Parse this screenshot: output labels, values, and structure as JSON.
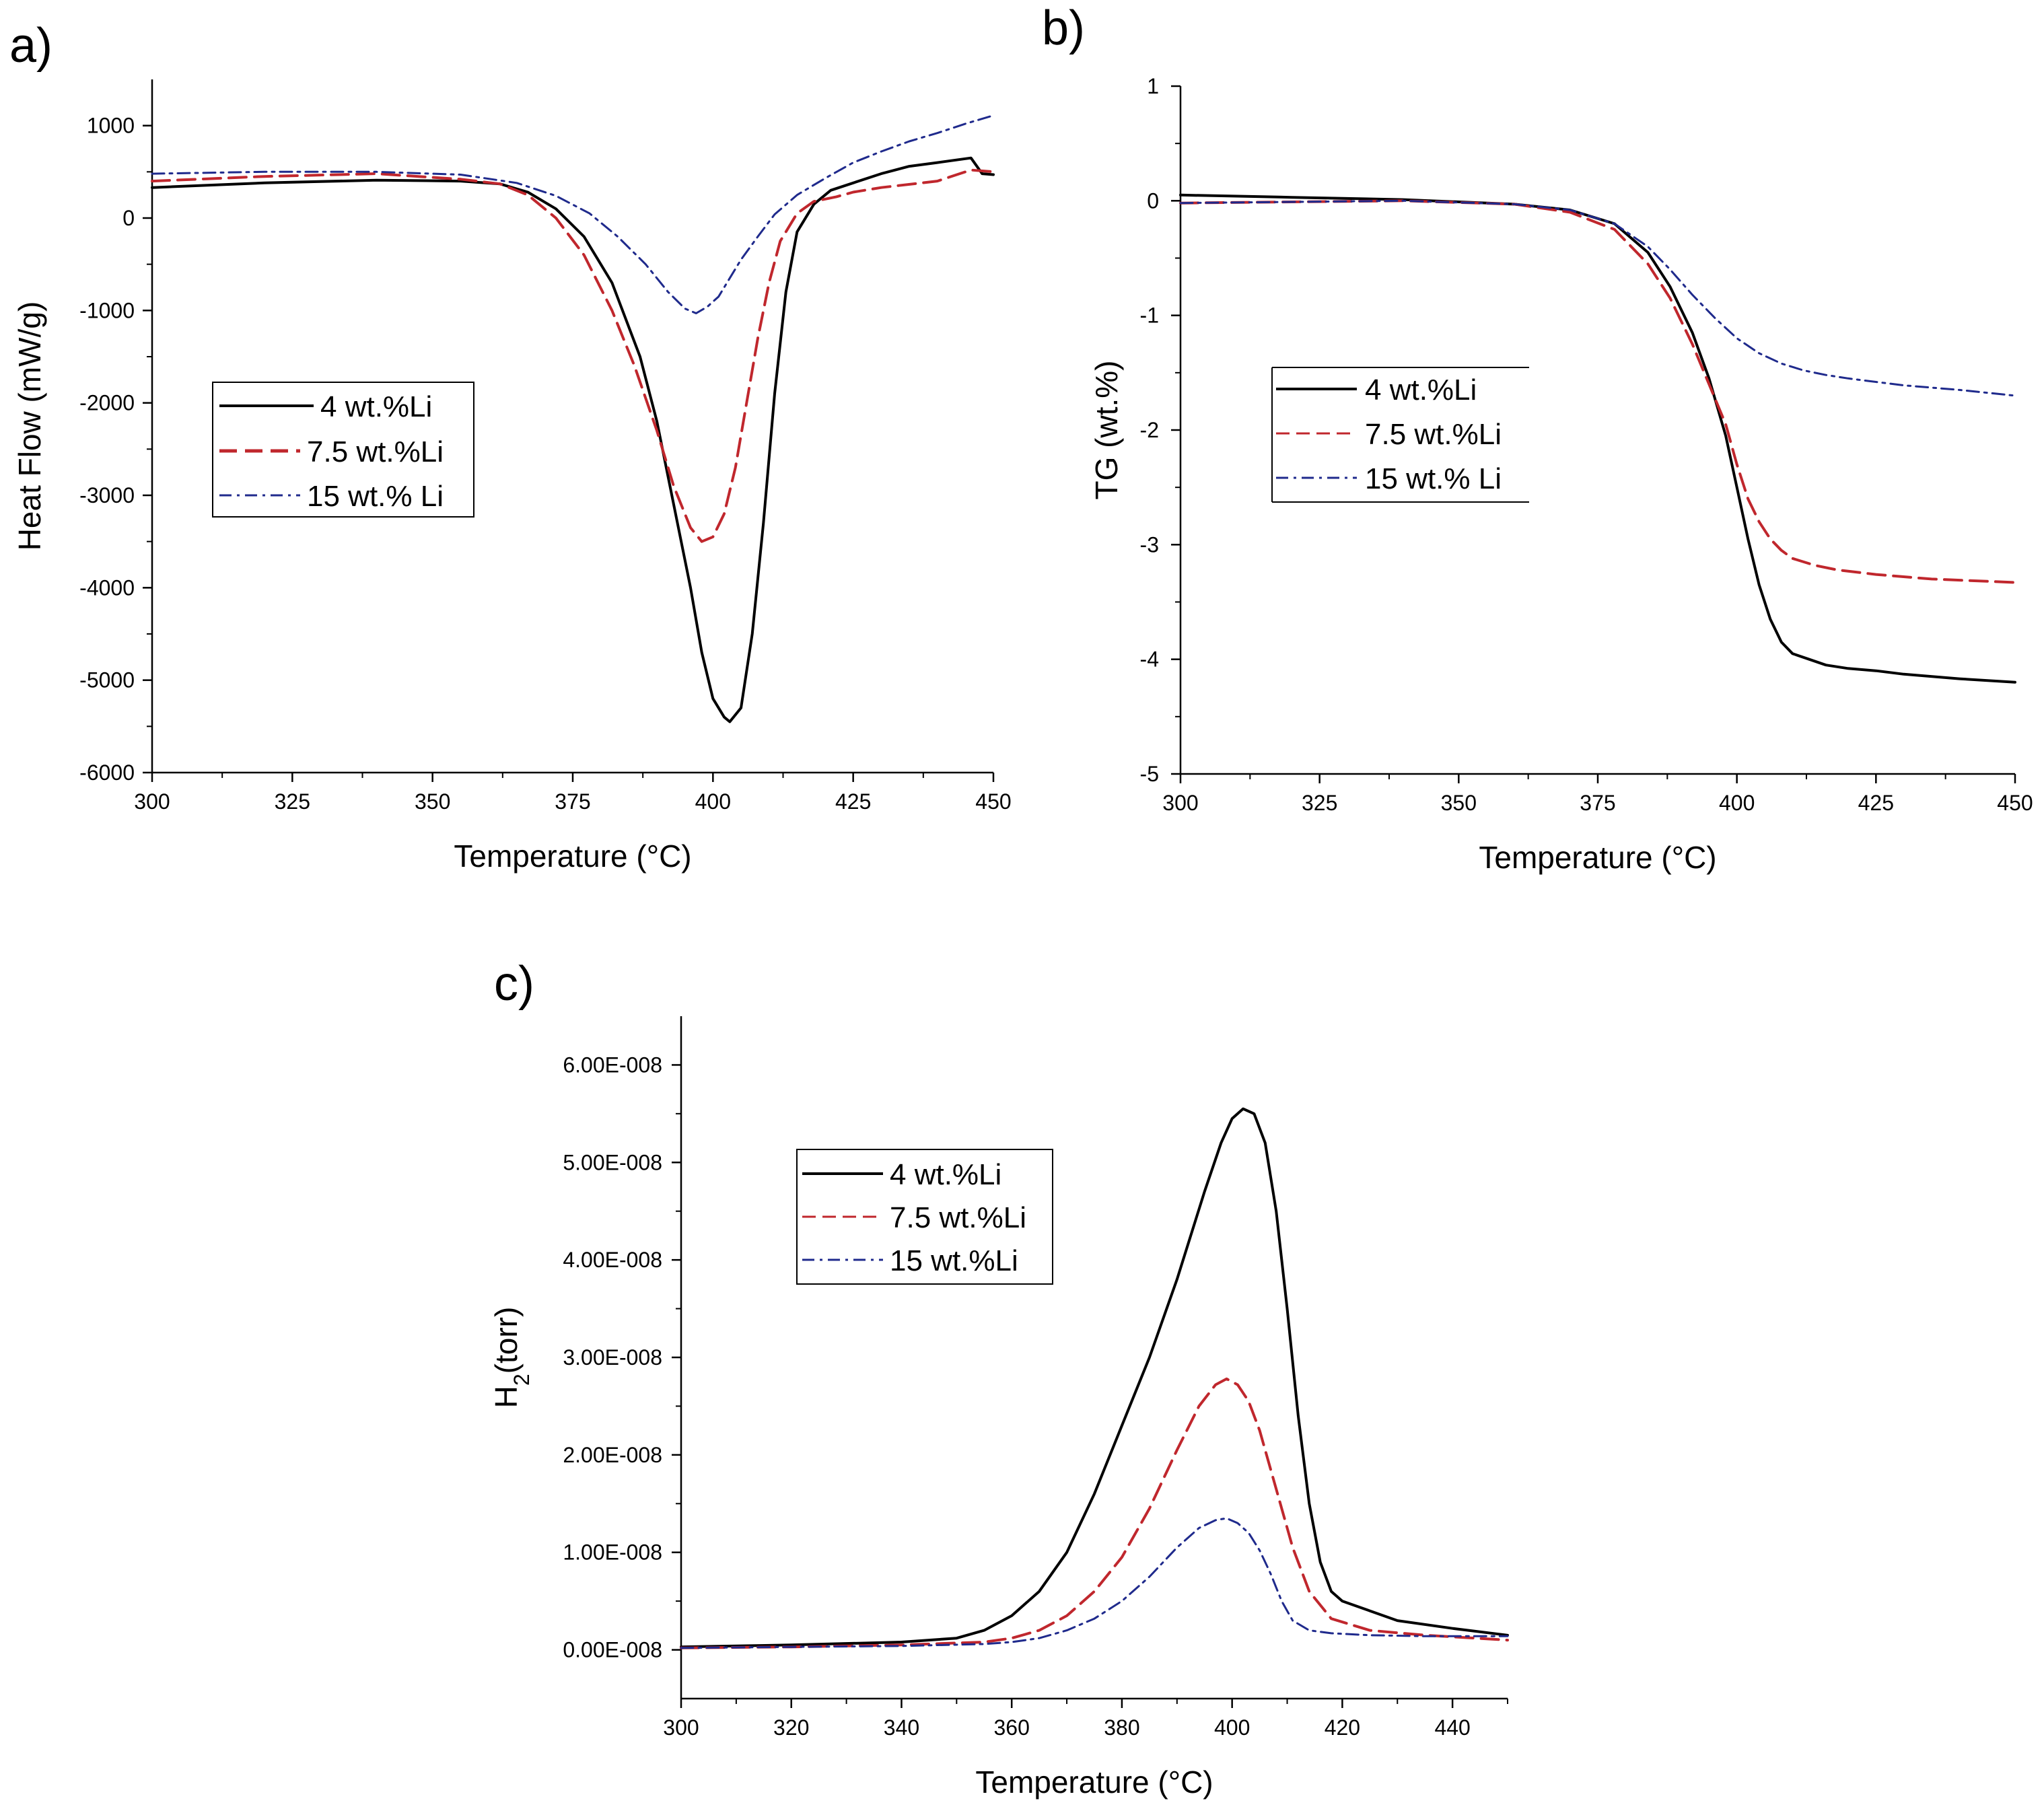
{
  "figure": {
    "panels": [
      "a)",
      "b)",
      "c)"
    ]
  },
  "chart_data": [
    {
      "type": "line",
      "panel": "a)",
      "xlabel": "Temperature (°C)",
      "ylabel": "Heat Flow (mW/g)",
      "xlim": [
        300,
        450
      ],
      "ylim": [
        -6000,
        1500
      ],
      "xticks": [
        300,
        325,
        350,
        375,
        400,
        425,
        450
      ],
      "yticks": [
        1000,
        0,
        -1000,
        -2000,
        -3000,
        -4000,
        -5000,
        -6000
      ],
      "xtick_labels": [
        "300",
        "325",
        "350",
        "375",
        "400",
        "425",
        "450"
      ],
      "ytick_labels": [
        "1000",
        "0",
        "-1000",
        "-2000",
        "-3000",
        "-4000",
        "-5000",
        "-6000"
      ],
      "legend": {
        "position": "left-middle",
        "entries": [
          "4 wt.%Li",
          "7.5 wt.%Li",
          "15 wt.% Li"
        ]
      },
      "series": [
        {
          "name": "4 wt.%Li",
          "color": "#000000",
          "style": "solid",
          "x": [
            300,
            320,
            340,
            355,
            362,
            367,
            372,
            377,
            382,
            387,
            390,
            393,
            396,
            398,
            400,
            402,
            403,
            405,
            407,
            409,
            411,
            413,
            415,
            418,
            421,
            425,
            430,
            435,
            440,
            446,
            448,
            450
          ],
          "y": [
            330,
            380,
            410,
            400,
            370,
            280,
            100,
            -200,
            -700,
            -1500,
            -2200,
            -3100,
            -4000,
            -4700,
            -5200,
            -5400,
            -5450,
            -5300,
            -4500,
            -3300,
            -1900,
            -800,
            -150,
            150,
            300,
            380,
            480,
            560,
            600,
            650,
            480,
            470
          ]
        },
        {
          "name": "7.5 wt.%Li",
          "color": "#c0272d",
          "style": "dashed",
          "x": [
            300,
            320,
            340,
            355,
            362,
            367,
            372,
            377,
            382,
            386,
            390,
            393,
            396,
            398,
            400,
            402,
            404,
            406,
            408,
            410,
            412,
            415,
            418,
            422,
            425,
            430,
            440,
            446,
            450
          ],
          "y": [
            400,
            450,
            480,
            420,
            370,
            250,
            0,
            -400,
            -1000,
            -1600,
            -2300,
            -2900,
            -3350,
            -3500,
            -3450,
            -3200,
            -2700,
            -2000,
            -1300,
            -700,
            -250,
            50,
            180,
            230,
            280,
            330,
            400,
            520,
            500
          ]
        },
        {
          "name": "15 wt.% Li",
          "color": "#1f2a8c",
          "style": "dashdot",
          "x": [
            300,
            320,
            340,
            355,
            365,
            372,
            378,
            383,
            388,
            392,
            395,
            397,
            399,
            401,
            403,
            405,
            408,
            411,
            415,
            420,
            425,
            430,
            435,
            440,
            445,
            450
          ],
          "y": [
            480,
            500,
            500,
            470,
            380,
            240,
            50,
            -200,
            -500,
            -800,
            -980,
            -1030,
            -960,
            -850,
            -650,
            -450,
            -200,
            40,
            250,
            430,
            600,
            720,
            830,
            920,
            1020,
            1110
          ]
        }
      ]
    },
    {
      "type": "line",
      "panel": "b)",
      "xlabel": "Temperature (°C)",
      "ylabel": "TG (wt.%)",
      "xlim": [
        300,
        450
      ],
      "ylim": [
        -5,
        1
      ],
      "xticks": [
        300,
        325,
        350,
        375,
        400,
        425,
        450
      ],
      "yticks": [
        1,
        0,
        -1,
        -2,
        -3,
        -4,
        -5
      ],
      "xtick_labels": [
        "300",
        "325",
        "350",
        "375",
        "400",
        "425",
        "450"
      ],
      "ytick_labels": [
        "1",
        "0",
        "-1",
        "-2",
        "-3",
        "-4",
        "-5"
      ],
      "legend": {
        "position": "right-middle",
        "entries": [
          "4 wt.%Li",
          "7.5 wt.%Li",
          "15 wt.% Li"
        ]
      },
      "series": [
        {
          "name": "4 wt.%Li",
          "color": "#000000",
          "style": "solid",
          "x": [
            300,
            320,
            340,
            360,
            370,
            378,
            384,
            388,
            392,
            395,
            398,
            400,
            402,
            404,
            406,
            408,
            410,
            413,
            416,
            420,
            425,
            430,
            440,
            450
          ],
          "y": [
            0.05,
            0.03,
            0.01,
            -0.03,
            -0.08,
            -0.2,
            -0.45,
            -0.75,
            -1.15,
            -1.55,
            -2.05,
            -2.5,
            -2.95,
            -3.35,
            -3.65,
            -3.85,
            -3.95,
            -4.0,
            -4.05,
            -4.08,
            -4.1,
            -4.13,
            -4.17,
            -4.2
          ]
        },
        {
          "name": "7.5 wt.%Li",
          "color": "#c0272d",
          "style": "dashed",
          "x": [
            300,
            320,
            340,
            360,
            370,
            378,
            384,
            388,
            392,
            395,
            398,
            400,
            402,
            404,
            406,
            408,
            410,
            414,
            418,
            425,
            435,
            450
          ],
          "y": [
            -0.02,
            -0.01,
            0.0,
            -0.03,
            -0.1,
            -0.25,
            -0.55,
            -0.85,
            -1.25,
            -1.6,
            -1.95,
            -2.3,
            -2.6,
            -2.8,
            -2.95,
            -3.05,
            -3.12,
            -3.18,
            -3.22,
            -3.26,
            -3.3,
            -3.33
          ]
        },
        {
          "name": "15 wt.% Li",
          "color": "#1f2a8c",
          "style": "dashdot",
          "x": [
            300,
            320,
            340,
            360,
            370,
            378,
            384,
            388,
            392,
            396,
            400,
            404,
            408,
            412,
            416,
            420,
            425,
            430,
            440,
            450
          ],
          "y": [
            -0.02,
            -0.01,
            0.0,
            -0.03,
            -0.08,
            -0.2,
            -0.4,
            -0.6,
            -0.82,
            -1.02,
            -1.2,
            -1.33,
            -1.42,
            -1.48,
            -1.52,
            -1.55,
            -1.58,
            -1.61,
            -1.65,
            -1.7
          ]
        }
      ]
    },
    {
      "type": "line",
      "panel": "c)",
      "xlabel": "Temperature (°C)",
      "ylabel": "H",
      "ylabel_sub": "2",
      "ylabel_rest": "(torr)",
      "xlim": [
        300,
        450
      ],
      "ylim": [
        -5e-09,
        6.5e-08
      ],
      "xticks": [
        300,
        320,
        340,
        360,
        380,
        400,
        420,
        440
      ],
      "yticks": [
        0,
        1e-08,
        2e-08,
        3e-08,
        4e-08,
        5e-08,
        6e-08
      ],
      "xtick_labels": [
        "300",
        "320",
        "340",
        "360",
        "380",
        "400",
        "420",
        "440"
      ],
      "ytick_labels": [
        "0.00E-008",
        "1.00E-008",
        "2.00E-008",
        "3.00E-008",
        "4.00E-008",
        "5.00E-008",
        "6.00E-008"
      ],
      "legend": {
        "position": "top-left",
        "entries": [
          "4 wt.%Li",
          "7.5 wt.%Li",
          "15 wt.%Li"
        ]
      },
      "series": [
        {
          "name": "4 wt.%Li",
          "color": "#000000",
          "style": "solid",
          "x": [
            300,
            320,
            340,
            350,
            355,
            360,
            365,
            370,
            375,
            380,
            385,
            390,
            395,
            398,
            400,
            402,
            404,
            406,
            408,
            410,
            412,
            414,
            416,
            418,
            420,
            425,
            430,
            440,
            450
          ],
          "y": [
            3e-10,
            5e-10,
            8e-10,
            1.2e-09,
            2e-09,
            3.5e-09,
            6e-09,
            1e-08,
            1.6e-08,
            2.3e-08,
            3e-08,
            3.8e-08,
            4.7e-08,
            5.2e-08,
            5.45e-08,
            5.55e-08,
            5.5e-08,
            5.2e-08,
            4.5e-08,
            3.5e-08,
            2.4e-08,
            1.5e-08,
            9e-09,
            6e-09,
            5e-09,
            4e-09,
            3e-09,
            2.2e-09,
            1.5e-09
          ]
        },
        {
          "name": "7.5 wt.%Li",
          "color": "#c0272d",
          "style": "dashed",
          "x": [
            300,
            320,
            340,
            355,
            360,
            365,
            370,
            375,
            380,
            385,
            390,
            394,
            397,
            399,
            401,
            403,
            405,
            408,
            411,
            414,
            418,
            425,
            435,
            450
          ],
          "y": [
            2e-10,
            3e-10,
            5e-10,
            8e-10,
            1.2e-09,
            2e-09,
            3.5e-09,
            6e-09,
            9.5e-09,
            1.45e-08,
            2.05e-08,
            2.5e-08,
            2.72e-08,
            2.78e-08,
            2.72e-08,
            2.55e-08,
            2.25e-08,
            1.65e-08,
            1.05e-08,
            6e-09,
            3.2e-09,
            2e-09,
            1.5e-09,
            1e-09
          ]
        },
        {
          "name": "15 wt.%Li",
          "color": "#1f2a8c",
          "style": "dashdot",
          "x": [
            300,
            320,
            340,
            355,
            360,
            365,
            370,
            375,
            380,
            385,
            390,
            394,
            397,
            399,
            401,
            403,
            405,
            407,
            409,
            411,
            414,
            418,
            425,
            435,
            450
          ],
          "y": [
            2e-10,
            3e-10,
            4e-10,
            6e-10,
            8e-10,
            1.2e-09,
            2e-09,
            3.2e-09,
            5e-09,
            7.5e-09,
            1.05e-08,
            1.25e-08,
            1.33e-08,
            1.35e-08,
            1.3e-08,
            1.2e-08,
            1.02e-08,
            7.8e-09,
            5e-09,
            3e-09,
            2e-09,
            1.7e-09,
            1.5e-09,
            1.4e-09,
            1.4e-09
          ]
        }
      ]
    }
  ]
}
